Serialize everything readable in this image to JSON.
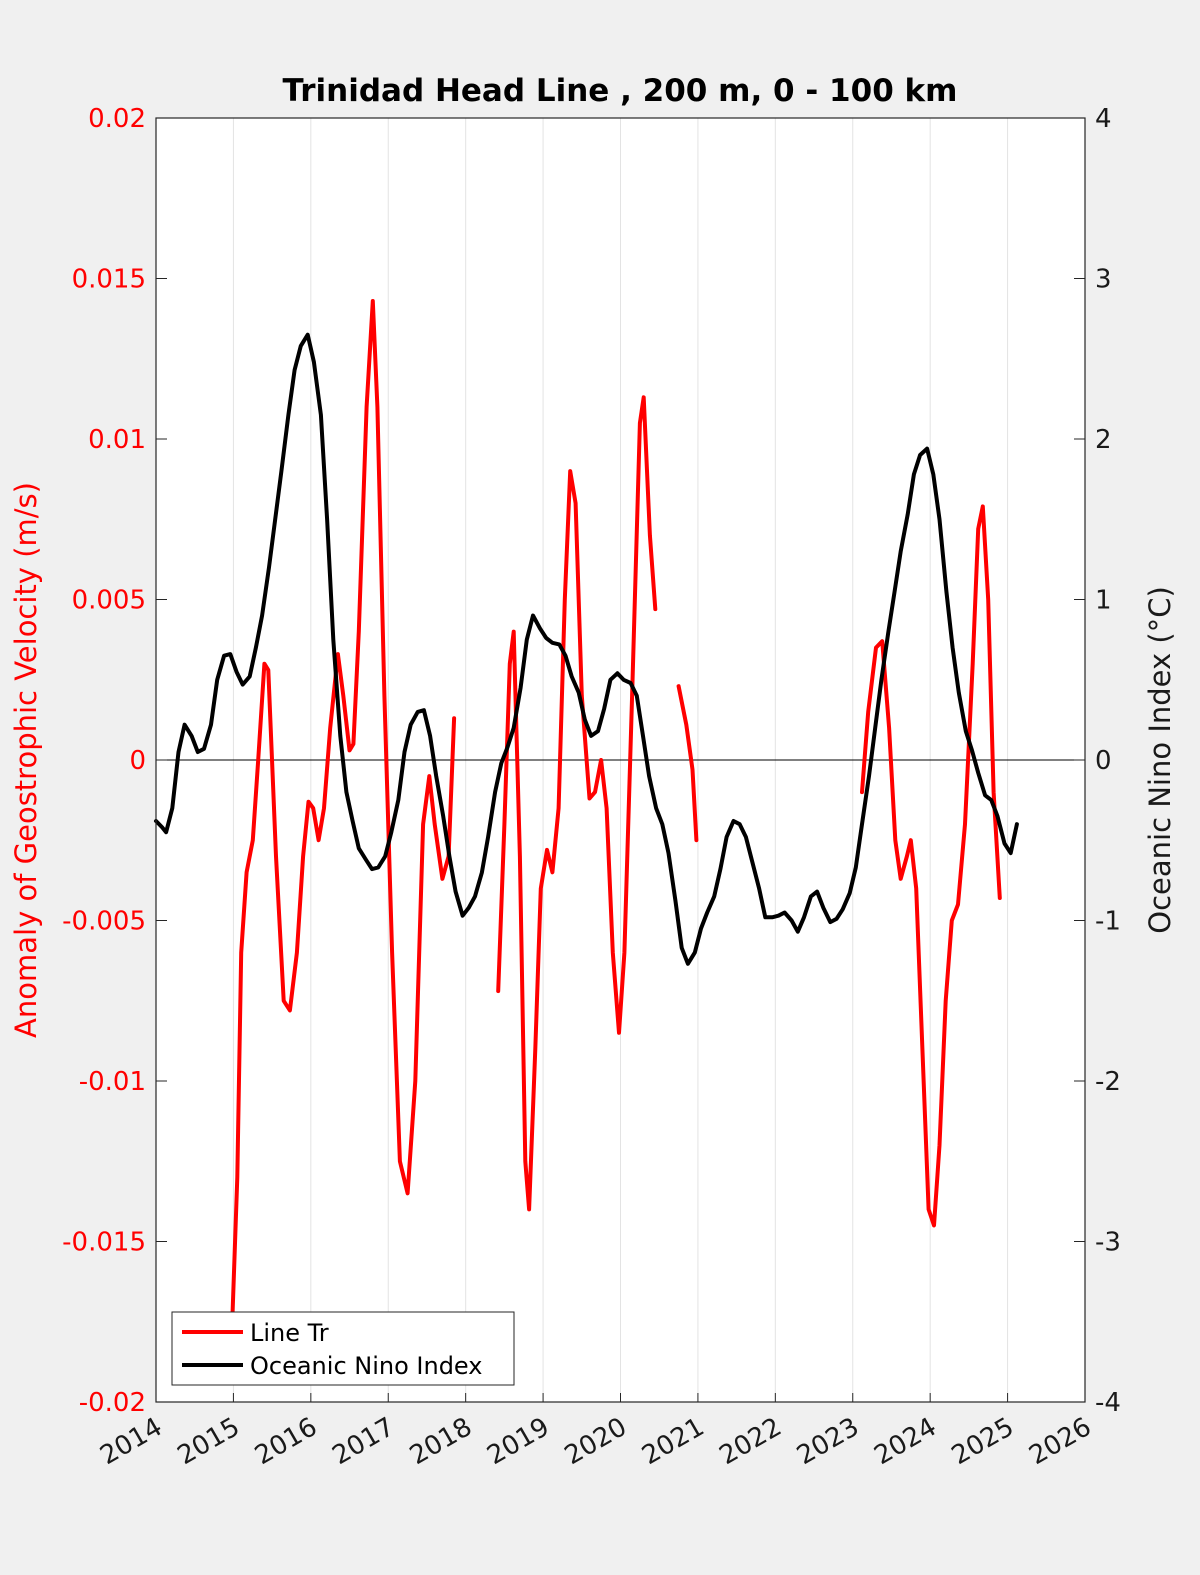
{
  "chart_data": {
    "type": "line",
    "title": "Trinidad Head Line , 200 m, 0 - 100 km",
    "xlabel": "",
    "ylabel_left": "Anomaly of Geostrophic Velocity (m/s)",
    "ylabel_right": "Oceanic Nino Index (°C)",
    "xlim": [
      2014,
      2026
    ],
    "ylim_left": [
      -0.02,
      0.02
    ],
    "ylim_right": [
      -4,
      4
    ],
    "x_ticks": [
      "2014",
      "2015",
      "2016",
      "2017",
      "2018",
      "2019",
      "2020",
      "2021",
      "2022",
      "2023",
      "2024",
      "2025",
      "2026"
    ],
    "y_ticks_left": [
      "-0.02",
      "-0.015",
      "-0.01",
      "-0.005",
      "0",
      "0.005",
      "0.01",
      "0.015",
      "0.02"
    ],
    "y_ticks_right": [
      "-4",
      "-3",
      "-2",
      "-1",
      "0",
      "1",
      "2",
      "3",
      "4"
    ],
    "grid": "vertical",
    "legend_position": "bottom-left",
    "colors": {
      "line_tr": "#ff0000",
      "oni": "#000000",
      "axis_left": "#ff0000",
      "axis_right": "#1a1a1a"
    },
    "series": [
      {
        "name": "Line Tr",
        "axis": "left",
        "color": "#ff0000",
        "segments": [
          [
            [
              2014.99,
              -0.0172
            ],
            [
              2015.05,
              -0.013
            ],
            [
              2015.1,
              -0.006
            ],
            [
              2015.17,
              -0.0035
            ],
            [
              2015.25,
              -0.0025
            ],
            [
              2015.32,
              0.0
            ],
            [
              2015.4,
              0.003
            ],
            [
              2015.45,
              0.0028
            ],
            [
              2015.55,
              -0.003
            ],
            [
              2015.65,
              -0.0075
            ],
            [
              2015.73,
              -0.0078
            ],
            [
              2015.82,
              -0.006
            ],
            [
              2015.9,
              -0.003
            ],
            [
              2015.97,
              -0.0013
            ],
            [
              2016.03,
              -0.0015
            ],
            [
              2016.1,
              -0.0025
            ],
            [
              2016.17,
              -0.0015
            ],
            [
              2016.25,
              0.001
            ],
            [
              2016.35,
              0.0033
            ],
            [
              2016.42,
              0.002
            ],
            [
              2016.5,
              0.0003
            ],
            [
              2016.55,
              0.0005
            ],
            [
              2016.62,
              0.004
            ],
            [
              2016.72,
              0.011
            ],
            [
              2016.8,
              0.0143
            ],
            [
              2016.86,
              0.011
            ],
            [
              2016.95,
              0.002
            ],
            [
              2017.05,
              -0.006
            ],
            [
              2017.15,
              -0.0125
            ],
            [
              2017.25,
              -0.0135
            ],
            [
              2017.35,
              -0.01
            ],
            [
              2017.45,
              -0.002
            ],
            [
              2017.53,
              -0.0005
            ],
            [
              2017.6,
              -0.002
            ],
            [
              2017.7,
              -0.0037
            ],
            [
              2017.78,
              -0.003
            ],
            [
              2017.85,
              0.0013
            ]
          ],
          [
            [
              2018.42,
              -0.0072
            ],
            [
              2018.5,
              -0.002
            ],
            [
              2018.57,
              0.003
            ],
            [
              2018.62,
              0.004
            ],
            [
              2018.7,
              -0.003
            ],
            [
              2018.77,
              -0.0125
            ],
            [
              2018.82,
              -0.014
            ],
            [
              2018.9,
              -0.009
            ],
            [
              2018.97,
              -0.004
            ],
            [
              2019.05,
              -0.0028
            ],
            [
              2019.12,
              -0.0035
            ],
            [
              2019.2,
              -0.0015
            ],
            [
              2019.28,
              0.005
            ],
            [
              2019.35,
              0.009
            ],
            [
              2019.42,
              0.008
            ],
            [
              2019.5,
              0.002
            ],
            [
              2019.6,
              -0.0012
            ],
            [
              2019.67,
              -0.001
            ],
            [
              2019.75,
              0.0
            ],
            [
              2019.82,
              -0.0015
            ],
            [
              2019.9,
              -0.006
            ],
            [
              2019.98,
              -0.0085
            ],
            [
              2020.05,
              -0.006
            ],
            [
              2020.15,
              0.002
            ],
            [
              2020.25,
              0.0105
            ],
            [
              2020.3,
              0.0113
            ],
            [
              2020.38,
              0.007
            ],
            [
              2020.45,
              0.0047
            ]
          ],
          [
            [
              2020.75,
              0.0023
            ],
            [
              2020.85,
              0.0011
            ],
            [
              2020.93,
              -0.0003
            ],
            [
              2020.98,
              -0.0025
            ]
          ],
          [
            [
              2023.12,
              -0.001
            ],
            [
              2023.2,
              0.0015
            ],
            [
              2023.3,
              0.0035
            ],
            [
              2023.38,
              0.0037
            ],
            [
              2023.47,
              0.001
            ],
            [
              2023.55,
              -0.0025
            ],
            [
              2023.62,
              -0.0037
            ],
            [
              2023.7,
              -0.003
            ],
            [
              2023.75,
              -0.0025
            ],
            [
              2023.82,
              -0.004
            ],
            [
              2023.9,
              -0.009
            ],
            [
              2023.98,
              -0.014
            ],
            [
              2024.05,
              -0.0145
            ],
            [
              2024.12,
              -0.012
            ],
            [
              2024.2,
              -0.0075
            ],
            [
              2024.28,
              -0.005
            ],
            [
              2024.36,
              -0.0045
            ],
            [
              2024.45,
              -0.002
            ],
            [
              2024.55,
              0.003
            ],
            [
              2024.62,
              0.0072
            ],
            [
              2024.68,
              0.0079
            ],
            [
              2024.75,
              0.005
            ],
            [
              2024.82,
              -0.001
            ],
            [
              2024.9,
              -0.0043
            ]
          ]
        ]
      },
      {
        "name": "Oceanic Nino Index",
        "axis": "right",
        "color": "#000000",
        "segments": [
          [
            [
              2014.0,
              -0.38
            ],
            [
              2014.08,
              -0.42
            ],
            [
              2014.13,
              -0.45
            ],
            [
              2014.21,
              -0.3
            ],
            [
              2014.29,
              0.05
            ],
            [
              2014.37,
              0.22
            ],
            [
              2014.46,
              0.15
            ],
            [
              2014.54,
              0.05
            ],
            [
              2014.62,
              0.07
            ],
            [
              2014.71,
              0.22
            ],
            [
              2014.79,
              0.5
            ],
            [
              2014.88,
              0.65
            ],
            [
              2014.96,
              0.66
            ],
            [
              2015.04,
              0.55
            ],
            [
              2015.12,
              0.47
            ],
            [
              2015.21,
              0.52
            ],
            [
              2015.29,
              0.7
            ],
            [
              2015.37,
              0.9
            ],
            [
              2015.46,
              1.2
            ],
            [
              2015.54,
              1.5
            ],
            [
              2015.62,
              1.8
            ],
            [
              2015.71,
              2.15
            ],
            [
              2015.79,
              2.43
            ],
            [
              2015.87,
              2.58
            ],
            [
              2015.96,
              2.65
            ],
            [
              2016.04,
              2.48
            ],
            [
              2016.13,
              2.15
            ],
            [
              2016.21,
              1.5
            ],
            [
              2016.29,
              0.75
            ],
            [
              2016.38,
              0.15
            ],
            [
              2016.46,
              -0.2
            ],
            [
              2016.54,
              -0.38
            ],
            [
              2016.62,
              -0.55
            ],
            [
              2016.71,
              -0.62
            ],
            [
              2016.79,
              -0.68
            ],
            [
              2016.87,
              -0.67
            ],
            [
              2016.96,
              -0.6
            ],
            [
              2017.04,
              -0.45
            ],
            [
              2017.13,
              -0.25
            ],
            [
              2017.21,
              0.05
            ],
            [
              2017.29,
              0.22
            ],
            [
              2017.38,
              0.3
            ],
            [
              2017.46,
              0.31
            ],
            [
              2017.54,
              0.15
            ],
            [
              2017.62,
              -0.1
            ],
            [
              2017.71,
              -0.35
            ],
            [
              2017.79,
              -0.6
            ],
            [
              2017.87,
              -0.82
            ],
            [
              2017.96,
              -0.97
            ],
            [
              2018.04,
              -0.92
            ],
            [
              2018.12,
              -0.85
            ],
            [
              2018.21,
              -0.7
            ],
            [
              2018.29,
              -0.48
            ],
            [
              2018.38,
              -0.2
            ],
            [
              2018.46,
              -0.02
            ],
            [
              2018.54,
              0.08
            ],
            [
              2018.62,
              0.2
            ],
            [
              2018.71,
              0.45
            ],
            [
              2018.79,
              0.75
            ],
            [
              2018.87,
              0.9
            ],
            [
              2018.96,
              0.82
            ],
            [
              2019.04,
              0.76
            ],
            [
              2019.12,
              0.73
            ],
            [
              2019.21,
              0.72
            ],
            [
              2019.29,
              0.65
            ],
            [
              2019.37,
              0.52
            ],
            [
              2019.46,
              0.42
            ],
            [
              2019.54,
              0.25
            ],
            [
              2019.62,
              0.15
            ],
            [
              2019.71,
              0.18
            ],
            [
              2019.79,
              0.32
            ],
            [
              2019.87,
              0.5
            ],
            [
              2019.96,
              0.54
            ],
            [
              2020.04,
              0.5
            ],
            [
              2020.13,
              0.48
            ],
            [
              2020.21,
              0.4
            ],
            [
              2020.29,
              0.15
            ],
            [
              2020.37,
              -0.1
            ],
            [
              2020.46,
              -0.3
            ],
            [
              2020.54,
              -0.4
            ],
            [
              2020.62,
              -0.58
            ],
            [
              2020.71,
              -0.88
            ],
            [
              2020.79,
              -1.17
            ],
            [
              2020.87,
              -1.27
            ],
            [
              2020.96,
              -1.2
            ],
            [
              2021.04,
              -1.05
            ],
            [
              2021.12,
              -0.95
            ],
            [
              2021.21,
              -0.85
            ],
            [
              2021.29,
              -0.68
            ],
            [
              2021.37,
              -0.48
            ],
            [
              2021.46,
              -0.38
            ],
            [
              2021.54,
              -0.4
            ],
            [
              2021.62,
              -0.48
            ],
            [
              2021.71,
              -0.65
            ],
            [
              2021.79,
              -0.8
            ],
            [
              2021.87,
              -0.98
            ],
            [
              2021.96,
              -0.98
            ],
            [
              2022.04,
              -0.97
            ],
            [
              2022.12,
              -0.95
            ],
            [
              2022.21,
              -1.0
            ],
            [
              2022.29,
              -1.07
            ],
            [
              2022.37,
              -0.98
            ],
            [
              2022.46,
              -0.85
            ],
            [
              2022.54,
              -0.82
            ],
            [
              2022.62,
              -0.92
            ],
            [
              2022.71,
              -1.01
            ],
            [
              2022.79,
              -0.99
            ],
            [
              2022.87,
              -0.93
            ],
            [
              2022.96,
              -0.83
            ],
            [
              2023.04,
              -0.67
            ],
            [
              2023.12,
              -0.4
            ],
            [
              2023.21,
              -0.1
            ],
            [
              2023.29,
              0.2
            ],
            [
              2023.37,
              0.5
            ],
            [
              2023.46,
              0.8
            ],
            [
              2023.54,
              1.05
            ],
            [
              2023.62,
              1.3
            ],
            [
              2023.71,
              1.53
            ],
            [
              2023.79,
              1.78
            ],
            [
              2023.87,
              1.9
            ],
            [
              2023.96,
              1.94
            ],
            [
              2024.04,
              1.78
            ],
            [
              2024.12,
              1.5
            ],
            [
              2024.21,
              1.05
            ],
            [
              2024.29,
              0.7
            ],
            [
              2024.37,
              0.42
            ],
            [
              2024.46,
              0.18
            ],
            [
              2024.54,
              0.06
            ],
            [
              2024.62,
              -0.08
            ],
            [
              2024.71,
              -0.22
            ],
            [
              2024.79,
              -0.25
            ],
            [
              2024.87,
              -0.35
            ],
            [
              2024.96,
              -0.52
            ],
            [
              2025.04,
              -0.58
            ],
            [
              2025.12,
              -0.4
            ]
          ]
        ]
      }
    ],
    "legend": [
      "Line Tr",
      "Oceanic Nino Index"
    ]
  }
}
